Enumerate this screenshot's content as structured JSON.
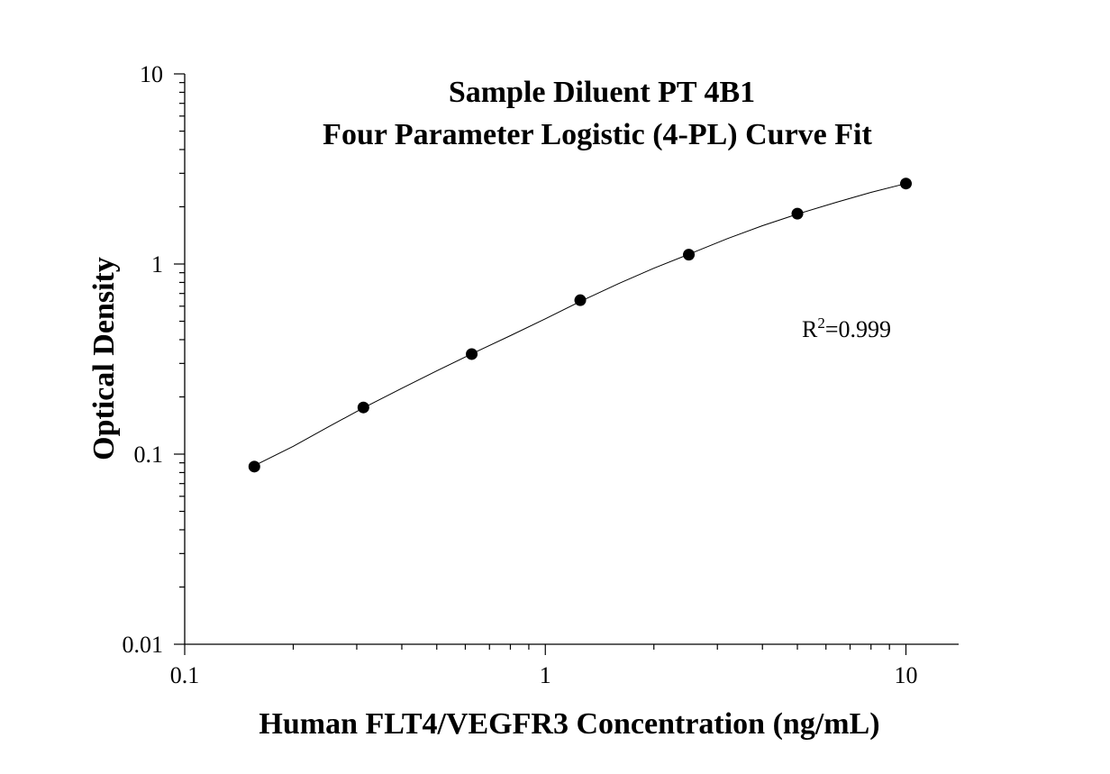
{
  "chart_data": {
    "type": "scatter",
    "title": [
      "Sample Diluent PT 4B1",
      "Four Parameter Logistic (4-PL) Curve Fit"
    ],
    "xlabel": "Human FLT4/VEGFR3 Concentration (ng/mL)",
    "ylabel": "Optical Density",
    "xscale": "log",
    "yscale": "log",
    "xlim": [
      0.1,
      14
    ],
    "ylim": [
      0.01,
      10
    ],
    "x_ticks": [
      "0.1",
      "1",
      "10"
    ],
    "y_ticks": [
      "0.01",
      "0.1",
      "1",
      "10"
    ],
    "grid": false,
    "legend": "none",
    "series": [
      {
        "x": [
          0.156,
          0.313,
          0.625,
          1.25,
          2.5,
          5,
          10
        ],
        "y": [
          0.086,
          0.176,
          0.336,
          0.645,
          1.12,
          1.84,
          2.65
        ]
      }
    ],
    "fit_curve": {
      "model": "4-PL",
      "x": [
        0.156,
        0.2,
        0.25,
        0.313,
        0.4,
        0.5,
        0.625,
        0.8,
        1.0,
        1.25,
        1.6,
        2.0,
        2.5,
        3.2,
        4.0,
        5.0,
        6.4,
        8.0,
        10.0
      ],
      "y": [
        0.087,
        0.11,
        0.139,
        0.175,
        0.222,
        0.274,
        0.337,
        0.42,
        0.515,
        0.635,
        0.79,
        0.95,
        1.125,
        1.36,
        1.59,
        1.83,
        2.11,
        2.38,
        2.65
      ]
    },
    "annotations": [
      {
        "label": "R",
        "sup": "2",
        "value": "=0.999"
      }
    ],
    "colors": {
      "marker": "#000000",
      "line": "#000000",
      "axis": "#000000"
    }
  }
}
